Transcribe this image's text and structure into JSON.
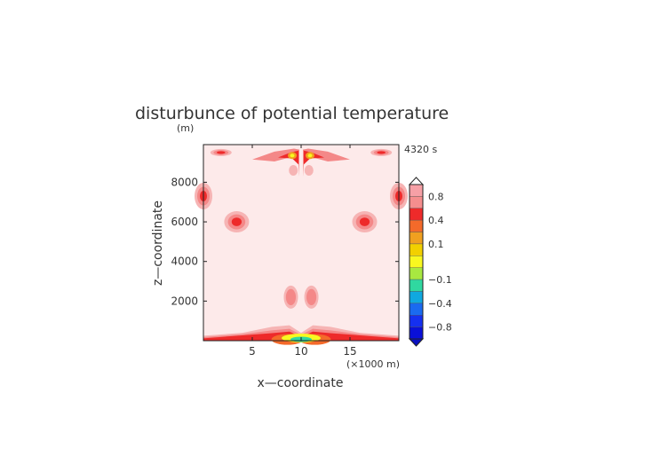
{
  "chart_data": {
    "type": "heatmap",
    "title": "disturbunce of potential temperature",
    "unit_label": "(m)",
    "time_label": "4320 s",
    "xlabel": "x—coordinate",
    "ylabel": "z—coordinate",
    "x_scale_label": "(×1000 m)",
    "xlim": [
      0,
      20
    ],
    "ylim": [
      0,
      9900
    ],
    "x_ticks": [
      5,
      10,
      15
    ],
    "y_ticks": [
      2000,
      4000,
      6000,
      8000
    ],
    "x_tick_labels": [
      "5",
      "10",
      "15"
    ],
    "y_tick_labels": [
      "2000",
      "4000",
      "6000",
      "8000"
    ],
    "colorbar": {
      "levels": [
        -1.0,
        -0.8,
        -0.6,
        -0.4,
        -0.2,
        -0.1,
        -0.05,
        0.05,
        0.1,
        0.2,
        0.4,
        0.6,
        0.8,
        1.0
      ],
      "tick_labels": [
        "0.8",
        "0.4",
        "0.1",
        "−0.1",
        "−0.4",
        "−0.8"
      ],
      "tick_values": [
        0.8,
        0.4,
        0.1,
        -0.1,
        -0.4,
        -0.8
      ],
      "colors_top_to_bottom": [
        "#f6a0a6",
        "#f58e8e",
        "#ee2a2a",
        "#f46a2a",
        "#f0a020",
        "#f2d000",
        "#f8f820",
        "#a8e840",
        "#30d8a0",
        "#10a8e0",
        "#1a6af0",
        "#1530f0",
        "#0a10d8"
      ],
      "over_color": "#ffffff",
      "under_color": "#0a10c0"
    },
    "background_value": 0.05,
    "background_color": "#fdeaea",
    "features": [
      {
        "name": "upper-left blob",
        "x": 3.5,
        "z": 6000,
        "peak": 0.4
      },
      {
        "name": "upper-right blob",
        "x": 16.5,
        "z": 6000,
        "peak": 0.4
      },
      {
        "name": "left edge blob",
        "x": 0.2,
        "z": 7300,
        "peak": 0.4
      },
      {
        "name": "right edge blob",
        "x": 19.8,
        "z": 7300,
        "peak": 0.4
      },
      {
        "name": "mid-left weak blob",
        "x": 9.0,
        "z": 2200,
        "peak": 0.2
      },
      {
        "name": "mid-right weak blob",
        "x": 11.0,
        "z": 2200,
        "peak": 0.2
      },
      {
        "name": "top plume left",
        "x": 8.8,
        "z": 9300,
        "peak": 0.6
      },
      {
        "name": "top plume right",
        "x": 11.2,
        "z": 9300,
        "peak": 0.6
      },
      {
        "name": "surface layer",
        "x": 10,
        "z": 150,
        "peak": 0.8,
        "min": -0.2
      }
    ]
  }
}
